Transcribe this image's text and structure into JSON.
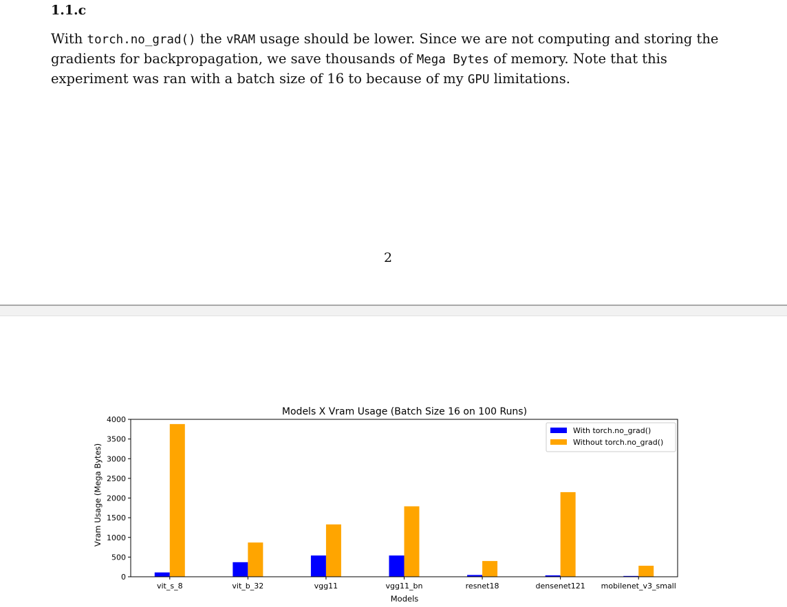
{
  "heading": "1.1.c",
  "paragraph": {
    "s1": "With ",
    "c1": "torch.no_grad()",
    "s2": " the ",
    "c2": "vRAM",
    "s3": " usage should be lower. Since we are not computing and storing the gradients for backpropagation, we save thousands of ",
    "c3": "Mega Bytes",
    "s4": " of memory. Note that this experiment was ran with a batch size of 16 to because of my ",
    "c4": "GPU",
    "s5": " limitations."
  },
  "page_number": "2",
  "colors": {
    "with": "#0000ff",
    "without": "#ffa500"
  },
  "chart_data": {
    "type": "bar",
    "title": "Models X Vram Usage (Batch Size 16 on 100 Runs)",
    "xlabel": "Models",
    "ylabel": "Vram Usage (Mega Bytes)",
    "ylim": [
      0,
      4000
    ],
    "yticks": [
      0,
      500,
      1000,
      1500,
      2000,
      2500,
      3000,
      3500,
      4000
    ],
    "categories": [
      "vit_s_8",
      "vit_b_32",
      "vgg11",
      "vgg11_bn",
      "resnet18",
      "densenet121",
      "mobilenet_v3_small"
    ],
    "series": [
      {
        "name": "With torch.no_grad()",
        "values": [
          110,
          370,
          540,
          540,
          45,
          35,
          20
        ]
      },
      {
        "name": "Without torch.no_grad()",
        "values": [
          3880,
          870,
          1330,
          1790,
          400,
          2150,
          280
        ]
      }
    ],
    "legend": "top-right",
    "grid": false
  }
}
